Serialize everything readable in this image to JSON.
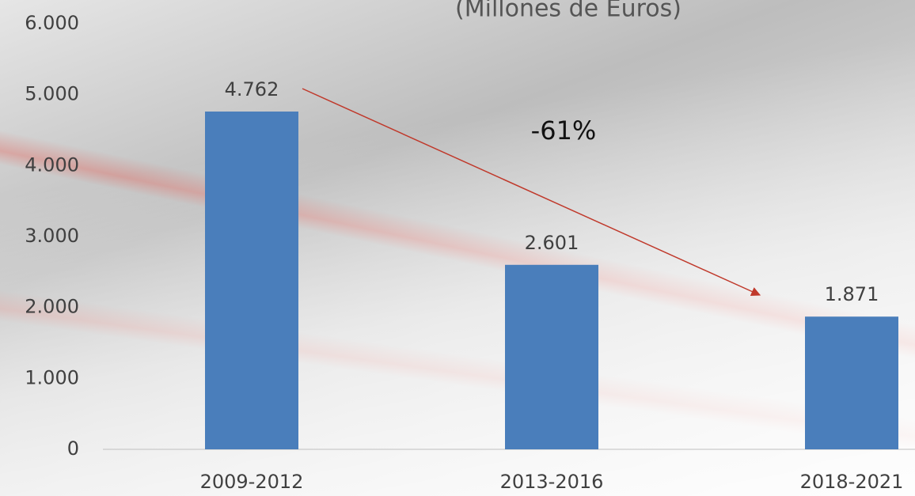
{
  "chart_data": {
    "type": "bar",
    "subtitle": "(Millones de Euros)",
    "annotation": "-61%",
    "categories": [
      "2009-2012",
      "2013-2016",
      "2018-2021"
    ],
    "values": [
      4762,
      2601,
      1871
    ],
    "value_labels": [
      "4.762",
      "2.601",
      "1.871"
    ],
    "color": "#4a7ebb",
    "ylim": [
      0,
      6000
    ],
    "yticks": [
      0,
      {
        "value": 1000,
        "label": "1.000"
      },
      {
        "value": 2000,
        "label": "2.000"
      },
      {
        "value": 3000,
        "label": "3.000"
      },
      {
        "value": 4000,
        "label": "4.000"
      },
      {
        "value": 5000,
        "label": "5.000"
      },
      {
        "value": 6000,
        "label": "6.000"
      }
    ],
    "grid": false
  }
}
